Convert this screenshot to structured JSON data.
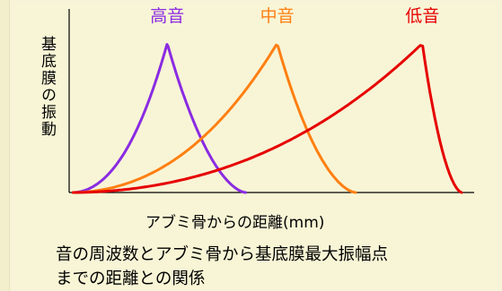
{
  "chart_data": {
    "type": "line",
    "ylabel": "基底膜の振動",
    "xlabel": "アブミ骨からの距離(mm)",
    "series": [
      {
        "name": "高音",
        "color": "#8a2be2",
        "peak_x": 0.25,
        "start_x": 0.01,
        "end_x": 0.45
      },
      {
        "name": "中音",
        "color": "#ff7f11",
        "peak_x": 0.53,
        "start_x": 0.01,
        "end_x": 0.73
      },
      {
        "name": "低音",
        "color": "#e60000",
        "peak_x": 0.9,
        "start_x": 0.01,
        "end_x": 1.0
      }
    ],
    "xlim": [
      0,
      1
    ],
    "ylim": [
      0,
      1
    ],
    "grid": false
  },
  "caption": {
    "line1": "音の周波数とアブミ骨から基底膜最大振幅点",
    "line2": "までの距離との関係"
  },
  "colors": {
    "background": "#f8f5d6",
    "axis": "#000000"
  }
}
